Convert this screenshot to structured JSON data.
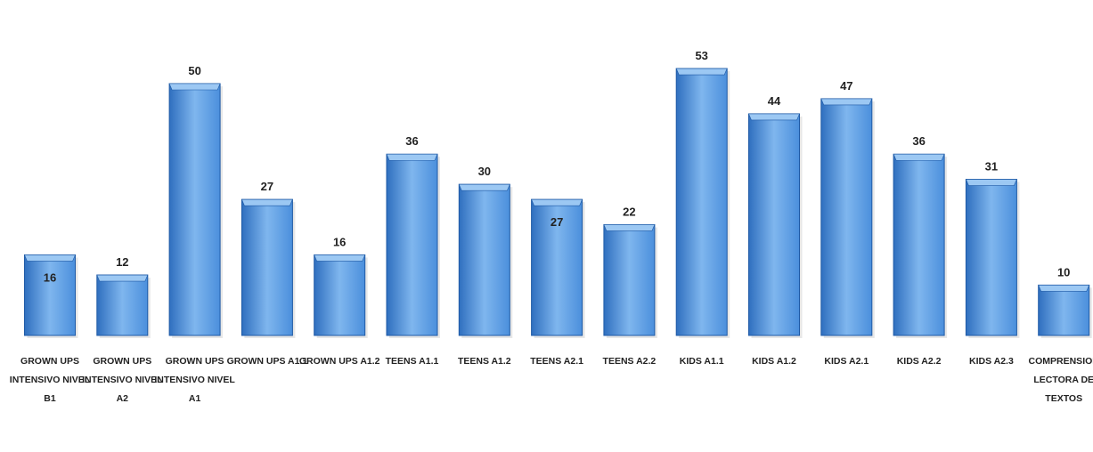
{
  "chart_data": {
    "type": "bar",
    "title": "",
    "xlabel": "",
    "ylabel": "",
    "ylim": [
      0,
      60
    ],
    "grid": false,
    "legend": "none",
    "categories": [
      [
        "GROWN UPS",
        "INTENSIVO NIVEL",
        "B1"
      ],
      [
        "GROWN UPS",
        "INTENSIVO NIVEL",
        "A2"
      ],
      [
        "GROWN UPS",
        "INTENSIVO NIVEL",
        "A1"
      ],
      [
        "GROWN UPS A1.1"
      ],
      [
        "GROWN UPS A1.2"
      ],
      [
        "TEENS A1.1"
      ],
      [
        "TEENS A1.2"
      ],
      [
        "TEENS A2.1"
      ],
      [
        "TEENS A2.2"
      ],
      [
        "KIDS A1.1"
      ],
      [
        "KIDS A1.2"
      ],
      [
        "KIDS A2.1"
      ],
      [
        "KIDS A2.2"
      ],
      [
        "KIDS A2.3"
      ],
      [
        "COMPRENSION",
        "LECTORA DE",
        "TEXTOS"
      ]
    ],
    "values": [
      16,
      12,
      50,
      27,
      16,
      36,
      30,
      27,
      22,
      53,
      44,
      47,
      36,
      31,
      10
    ],
    "label_inside": [
      true,
      false,
      false,
      false,
      false,
      false,
      false,
      true,
      false,
      false,
      false,
      false,
      false,
      false,
      false
    ],
    "colors": {
      "bar_light": "#7fb6ee",
      "bar_mid": "#4b8fdc",
      "bar_dark": "#2f6fbf",
      "bar_top": "#9cc8f3",
      "bar_edge": "#1f5aa6",
      "shadow": "#e7e7e7"
    }
  }
}
